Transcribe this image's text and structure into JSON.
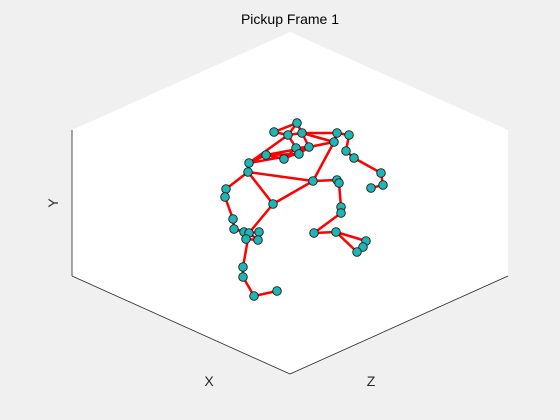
{
  "chart_data": {
    "type": "scatter",
    "title": "Pickup Frame 1",
    "xlabel": "X",
    "ylabel": "Y",
    "zlabel": "Z",
    "view": "3d-isometric",
    "grid": false,
    "marker_color": "#1fb5b5",
    "marker_edge_color": "#1a1a1a",
    "line_color": "#ff0000",
    "points": [
      [
        297,
        123
      ],
      [
        274,
        132
      ],
      [
        288,
        135
      ],
      [
        302,
        133
      ],
      [
        337,
        133
      ],
      [
        349,
        135
      ],
      [
        334,
        142
      ],
      [
        296,
        148
      ],
      [
        309,
        147
      ],
      [
        346,
        151
      ],
      [
        354,
        158
      ],
      [
        299,
        154
      ],
      [
        284,
        159
      ],
      [
        266,
        155
      ],
      [
        249,
        163
      ],
      [
        248,
        172
      ],
      [
        313,
        181
      ],
      [
        337,
        180
      ],
      [
        339,
        183
      ],
      [
        381,
        173
      ],
      [
        383,
        185
      ],
      [
        371,
        188
      ],
      [
        226,
        189
      ],
      [
        225,
        197
      ],
      [
        273,
        204
      ],
      [
        341,
        207
      ],
      [
        341,
        213
      ],
      [
        233,
        219
      ],
      [
        234,
        229
      ],
      [
        244,
        232
      ],
      [
        249,
        233
      ],
      [
        259,
        232
      ],
      [
        258,
        240
      ],
      [
        246,
        239
      ],
      [
        314,
        233
      ],
      [
        336,
        232
      ],
      [
        366,
        241
      ],
      [
        363,
        247
      ],
      [
        357,
        252
      ],
      [
        243,
        267
      ],
      [
        243,
        277
      ],
      [
        254,
        296
      ],
      [
        277,
        291
      ]
    ],
    "edges": [
      [
        0,
        1
      ],
      [
        0,
        2
      ],
      [
        0,
        3
      ],
      [
        1,
        2
      ],
      [
        2,
        3
      ],
      [
        3,
        4
      ],
      [
        2,
        7
      ],
      [
        3,
        8
      ],
      [
        7,
        8
      ],
      [
        4,
        5
      ],
      [
        4,
        6
      ],
      [
        5,
        9
      ],
      [
        9,
        10
      ],
      [
        10,
        19
      ],
      [
        19,
        20
      ],
      [
        20,
        21
      ],
      [
        3,
        6
      ],
      [
        6,
        8
      ],
      [
        8,
        12
      ],
      [
        7,
        12
      ],
      [
        12,
        13
      ],
      [
        13,
        11
      ],
      [
        11,
        14
      ],
      [
        14,
        15
      ],
      [
        14,
        13
      ],
      [
        13,
        8
      ],
      [
        8,
        11
      ],
      [
        15,
        22
      ],
      [
        22,
        23
      ],
      [
        23,
        27
      ],
      [
        27,
        28
      ],
      [
        28,
        29
      ],
      [
        28,
        30
      ],
      [
        29,
        30
      ],
      [
        30,
        31
      ],
      [
        30,
        32
      ],
      [
        31,
        32
      ],
      [
        32,
        33
      ],
      [
        33,
        30
      ],
      [
        30,
        39
      ],
      [
        39,
        40
      ],
      [
        40,
        41
      ],
      [
        41,
        42
      ],
      [
        15,
        24
      ],
      [
        24,
        30
      ],
      [
        24,
        16
      ],
      [
        15,
        16
      ],
      [
        16,
        17
      ],
      [
        17,
        18
      ],
      [
        18,
        25
      ],
      [
        25,
        26
      ],
      [
        26,
        34
      ],
      [
        34,
        35
      ],
      [
        35,
        36
      ],
      [
        36,
        37
      ],
      [
        35,
        38
      ],
      [
        14,
        2
      ],
      [
        16,
        6
      ]
    ]
  }
}
